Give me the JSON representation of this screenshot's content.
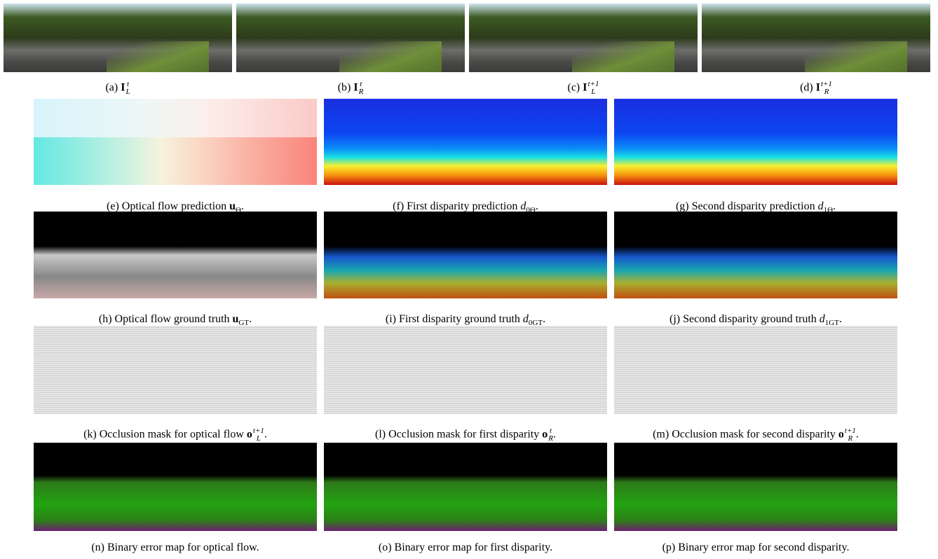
{
  "panels": [
    {
      "label": "(a)",
      "symbol": "I",
      "sup": "t",
      "sub": "L"
    },
    {
      "label": "(b)",
      "symbol": "I",
      "sup": "t",
      "sub": "R"
    },
    {
      "label": "(c)",
      "symbol": "I",
      "sup": "t+1",
      "sub": "L"
    },
    {
      "label": "(d)",
      "symbol": "I",
      "sup": "t+1",
      "sub": "R"
    },
    {
      "label": "(e)",
      "text": "Optical flow prediction",
      "symbol": "u",
      "sub": "Θ",
      "end": "."
    },
    {
      "label": "(f)",
      "text": "First disparity prediction",
      "symbol": "d",
      "sub": "0Θ",
      "end": "."
    },
    {
      "label": "(g)",
      "text": "Second disparity prediction",
      "symbol": "d",
      "sub": "1Θ",
      "end": "."
    },
    {
      "label": "(h)",
      "text": "Optical flow ground truth",
      "symbol": "u",
      "sub": "GT",
      "end": "."
    },
    {
      "label": "(i)",
      "text": "First disparity ground truth",
      "symbol": "d",
      "sub": "0GT",
      "end": "."
    },
    {
      "label": "(j)",
      "text": "Second disparity ground truth",
      "symbol": "d",
      "sub": "1GT",
      "end": "."
    },
    {
      "label": "(k)",
      "text": "Occlusion mask for optical flow",
      "symbol": "o",
      "sup": "t+1",
      "sub": "L",
      "end": "."
    },
    {
      "label": "(l)",
      "text": "Occlusion mask for first disparity",
      "symbol": "o",
      "sup": "t",
      "sub": "R",
      "end": "."
    },
    {
      "label": "(m)",
      "text": "Occlusion mask for second disparity",
      "symbol": "o",
      "sup": "t+1",
      "sub": "R",
      "end": "."
    },
    {
      "label": "(n)",
      "text": "Binary error map for optical flow."
    },
    {
      "label": "(o)",
      "text": "Binary error map for first disparity."
    },
    {
      "label": "(p)",
      "text": "Binary error map for second disparity."
    }
  ]
}
